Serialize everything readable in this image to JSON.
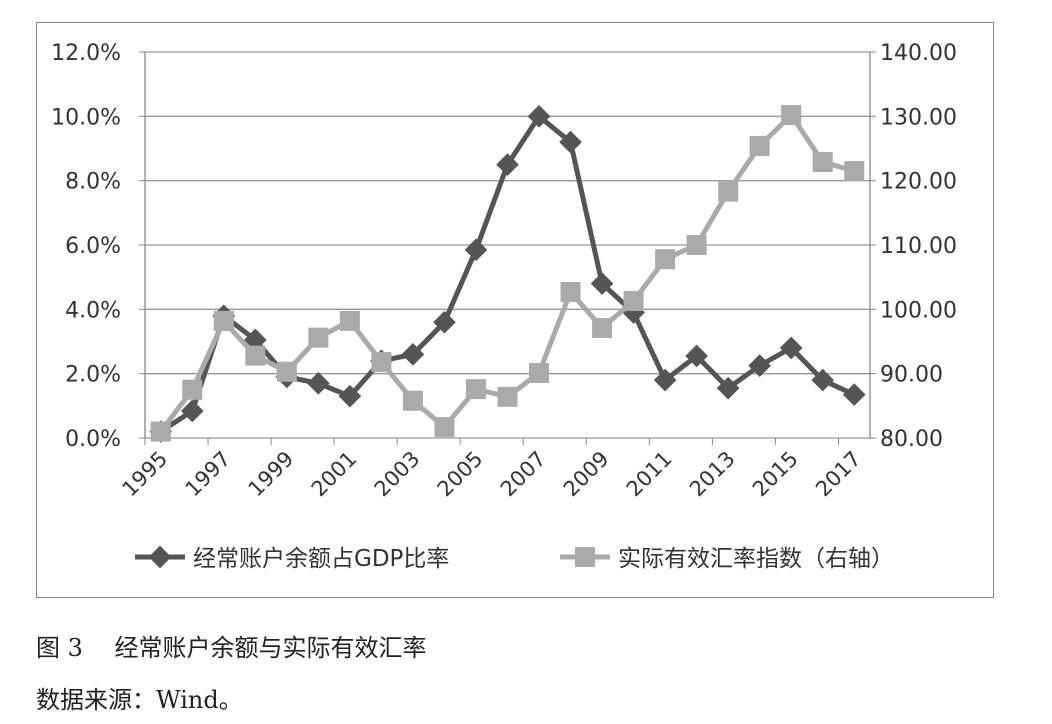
{
  "chart_data": {
    "type": "line",
    "categories": [
      "1995",
      "1996",
      "1997",
      "1998",
      "1999",
      "2000",
      "2001",
      "2002",
      "2003",
      "2004",
      "2005",
      "2006",
      "2007",
      "2008",
      "2009",
      "2010",
      "2011",
      "2012",
      "2013",
      "2014",
      "2015",
      "2016",
      "2017"
    ],
    "x_tick_labels": [
      "1995",
      "1997",
      "1999",
      "2001",
      "2003",
      "2005",
      "2007",
      "2009",
      "2011",
      "2013",
      "2015",
      "2017"
    ],
    "y_left": {
      "range": [
        0,
        12
      ],
      "ticks": [
        "0.0%",
        "2.0%",
        "4.0%",
        "6.0%",
        "8.0%",
        "10.0%",
        "12.0%"
      ]
    },
    "y_right": {
      "range": [
        80,
        140
      ],
      "ticks": [
        "80.00",
        "90.00",
        "100.00",
        "110.00",
        "120.00",
        "130.00",
        "140.00"
      ]
    },
    "grid": true,
    "legend_placement": "bottom",
    "series": [
      {
        "name": "经常账户余额占GDP比率",
        "axis": "left",
        "unit": "%",
        "marker": "diamond",
        "color": "#555555",
        "values": [
          0.2,
          0.84,
          3.8,
          3.05,
          1.9,
          1.7,
          1.3,
          2.4,
          2.6,
          3.6,
          5.85,
          8.5,
          10.0,
          9.2,
          4.8,
          3.9,
          1.8,
          2.55,
          1.55,
          2.25,
          2.8,
          1.8,
          1.35
        ]
      },
      {
        "name": "实际有效汇率指数（右轴）",
        "axis": "right",
        "marker": "square",
        "color": "#aaaaaa",
        "values": [
          81,
          87.5,
          98.2,
          92.8,
          90.3,
          95.6,
          98.2,
          91.8,
          85.8,
          81.7,
          87.6,
          86.4,
          90.1,
          102.7,
          97.1,
          101.3,
          107.8,
          110,
          118.3,
          125.4,
          130.2,
          122.9,
          121.5
        ]
      }
    ]
  },
  "caption": {
    "figure": "图 3　 经常账户余额与实际有效汇率",
    "source": "数据来源：Wind。"
  }
}
